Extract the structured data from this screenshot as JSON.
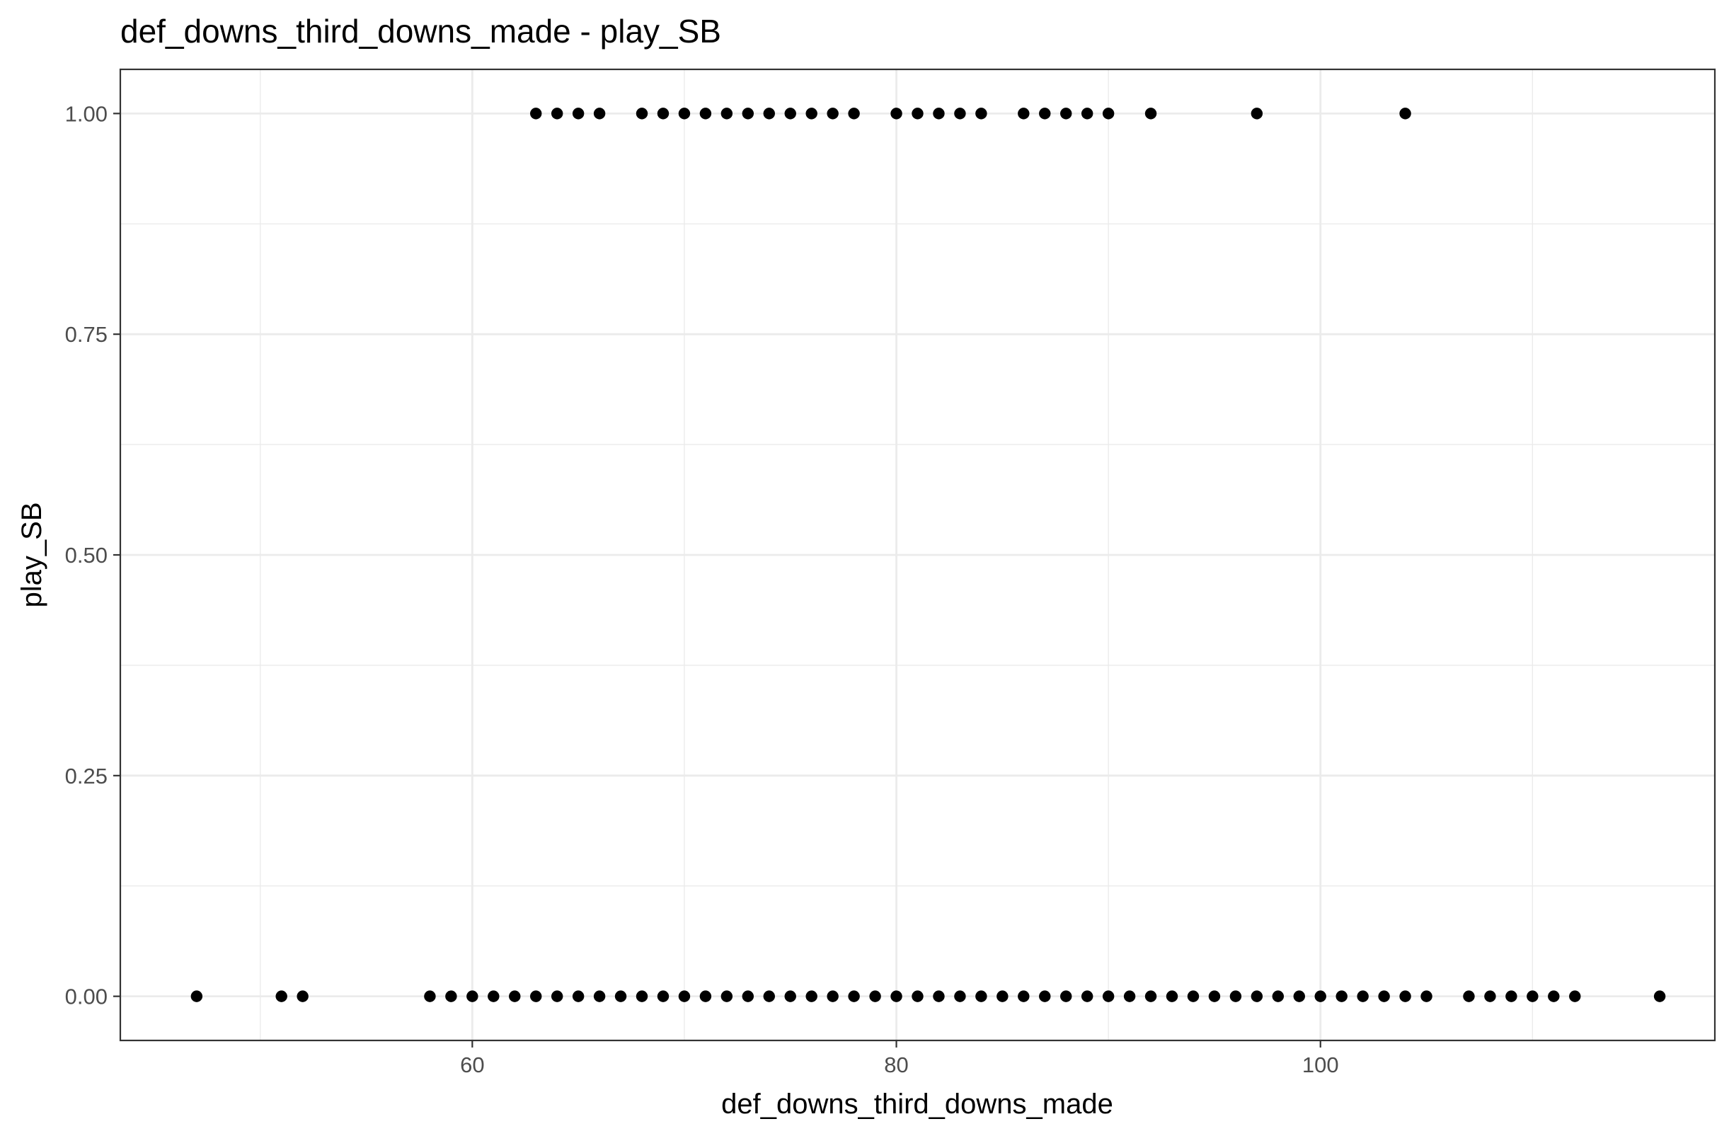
{
  "chart_data": {
    "type": "scatter",
    "title": "def_downs_third_downs_made - play_SB",
    "xlabel": "def_downs_third_downs_made",
    "ylabel": "play_SB",
    "xlim": [
      43.4,
      118.6
    ],
    "ylim": [
      -0.05,
      1.05
    ],
    "x_ticks": [
      60,
      80,
      100
    ],
    "x_tick_labels": [
      "60",
      "80",
      "100"
    ],
    "x_minor_ticks": [
      50,
      70,
      90,
      110
    ],
    "y_ticks": [
      0,
      0.25,
      0.5,
      0.75,
      1
    ],
    "y_tick_labels": [
      "0.00",
      "0.25",
      "0.50",
      "0.75",
      "1.00"
    ],
    "y_minor_ticks": [
      0.125,
      0.375,
      0.625,
      0.875
    ],
    "grid": true,
    "legend": "none",
    "point_color": "#000000",
    "series": [
      {
        "name": "",
        "points": [
          {
            "x": 63,
            "y": 1
          },
          {
            "x": 64,
            "y": 1
          },
          {
            "x": 65,
            "y": 1
          },
          {
            "x": 66,
            "y": 1
          },
          {
            "x": 68,
            "y": 1
          },
          {
            "x": 69,
            "y": 1
          },
          {
            "x": 70,
            "y": 1
          },
          {
            "x": 71,
            "y": 1
          },
          {
            "x": 72,
            "y": 1
          },
          {
            "x": 73,
            "y": 1
          },
          {
            "x": 74,
            "y": 1
          },
          {
            "x": 75,
            "y": 1
          },
          {
            "x": 76,
            "y": 1
          },
          {
            "x": 77,
            "y": 1
          },
          {
            "x": 78,
            "y": 1
          },
          {
            "x": 80,
            "y": 1
          },
          {
            "x": 81,
            "y": 1
          },
          {
            "x": 82,
            "y": 1
          },
          {
            "x": 83,
            "y": 1
          },
          {
            "x": 84,
            "y": 1
          },
          {
            "x": 86,
            "y": 1
          },
          {
            "x": 87,
            "y": 1
          },
          {
            "x": 88,
            "y": 1
          },
          {
            "x": 89,
            "y": 1
          },
          {
            "x": 90,
            "y": 1
          },
          {
            "x": 92,
            "y": 1
          },
          {
            "x": 97,
            "y": 1
          },
          {
            "x": 104,
            "y": 1
          },
          {
            "x": 47,
            "y": 0
          },
          {
            "x": 51,
            "y": 0
          },
          {
            "x": 52,
            "y": 0
          },
          {
            "x": 58,
            "y": 0
          },
          {
            "x": 59,
            "y": 0
          },
          {
            "x": 60,
            "y": 0
          },
          {
            "x": 61,
            "y": 0
          },
          {
            "x": 62,
            "y": 0
          },
          {
            "x": 63,
            "y": 0
          },
          {
            "x": 64,
            "y": 0
          },
          {
            "x": 65,
            "y": 0
          },
          {
            "x": 66,
            "y": 0
          },
          {
            "x": 67,
            "y": 0
          },
          {
            "x": 68,
            "y": 0
          },
          {
            "x": 69,
            "y": 0
          },
          {
            "x": 70,
            "y": 0
          },
          {
            "x": 71,
            "y": 0
          },
          {
            "x": 72,
            "y": 0
          },
          {
            "x": 73,
            "y": 0
          },
          {
            "x": 74,
            "y": 0
          },
          {
            "x": 75,
            "y": 0
          },
          {
            "x": 76,
            "y": 0
          },
          {
            "x": 77,
            "y": 0
          },
          {
            "x": 78,
            "y": 0
          },
          {
            "x": 79,
            "y": 0
          },
          {
            "x": 80,
            "y": 0
          },
          {
            "x": 81,
            "y": 0
          },
          {
            "x": 82,
            "y": 0
          },
          {
            "x": 83,
            "y": 0
          },
          {
            "x": 84,
            "y": 0
          },
          {
            "x": 85,
            "y": 0
          },
          {
            "x": 86,
            "y": 0
          },
          {
            "x": 87,
            "y": 0
          },
          {
            "x": 88,
            "y": 0
          },
          {
            "x": 89,
            "y": 0
          },
          {
            "x": 90,
            "y": 0
          },
          {
            "x": 91,
            "y": 0
          },
          {
            "x": 92,
            "y": 0
          },
          {
            "x": 93,
            "y": 0
          },
          {
            "x": 94,
            "y": 0
          },
          {
            "x": 95,
            "y": 0
          },
          {
            "x": 96,
            "y": 0
          },
          {
            "x": 97,
            "y": 0
          },
          {
            "x": 98,
            "y": 0
          },
          {
            "x": 99,
            "y": 0
          },
          {
            "x": 100,
            "y": 0
          },
          {
            "x": 101,
            "y": 0
          },
          {
            "x": 102,
            "y": 0
          },
          {
            "x": 103,
            "y": 0
          },
          {
            "x": 104,
            "y": 0
          },
          {
            "x": 105,
            "y": 0
          },
          {
            "x": 107,
            "y": 0
          },
          {
            "x": 108,
            "y": 0
          },
          {
            "x": 109,
            "y": 0
          },
          {
            "x": 110,
            "y": 0
          },
          {
            "x": 111,
            "y": 0
          },
          {
            "x": 112,
            "y": 0
          },
          {
            "x": 116,
            "y": 0
          }
        ]
      }
    ]
  }
}
